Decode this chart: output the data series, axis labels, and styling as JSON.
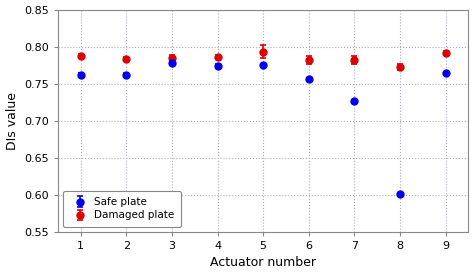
{
  "actuators": [
    1,
    2,
    3,
    4,
    5,
    6,
    7,
    8,
    9
  ],
  "safe_values": [
    0.762,
    0.762,
    0.778,
    0.774,
    0.775,
    0.756,
    0.727,
    0.601,
    0.764
  ],
  "safe_yerr": [
    0.002,
    0.003,
    0.003,
    0.003,
    0.002,
    0.002,
    0.0,
    0.002,
    0.002
  ],
  "damaged_values": [
    0.787,
    0.783,
    0.784,
    0.786,
    0.793,
    0.782,
    0.782,
    0.773,
    0.791
  ],
  "damaged_yerr": [
    0.003,
    0.003,
    0.004,
    0.003,
    0.009,
    0.005,
    0.005,
    0.004,
    0.003
  ],
  "safe_color": "#0000ee",
  "damaged_color": "#dd0000",
  "ylabel": "DIs value",
  "xlabel": "Actuator number",
  "ylim": [
    0.55,
    0.85
  ],
  "yticks": [
    0.55,
    0.6,
    0.65,
    0.7,
    0.75,
    0.8,
    0.85
  ],
  "grid_color": "#aaaacc",
  "background_color": "#ffffff",
  "legend_safe": "Safe plate",
  "legend_damaged": "Damaged plate"
}
